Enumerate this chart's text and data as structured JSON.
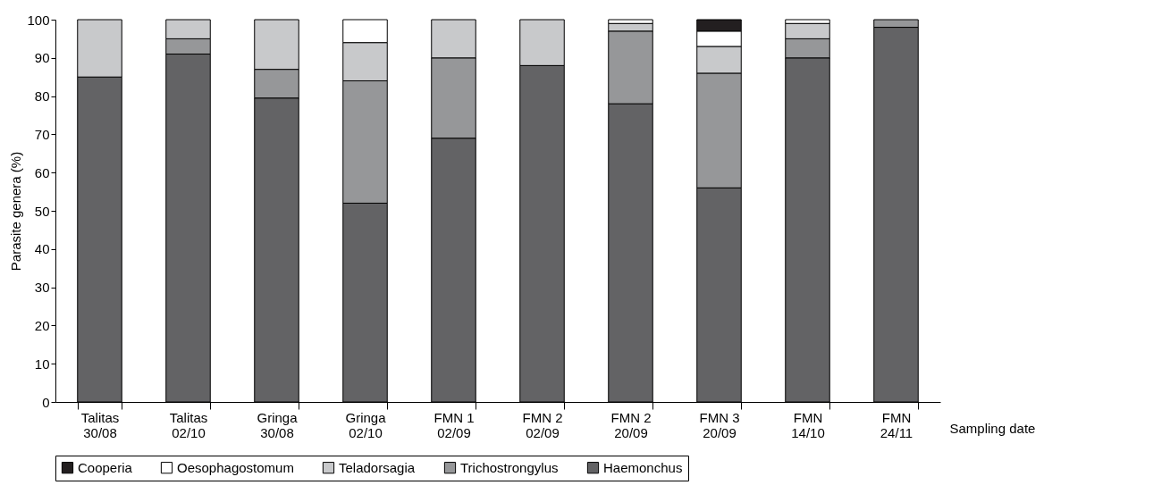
{
  "chart_data": {
    "type": "bar",
    "stacked": true,
    "ylabel": "Parasite genera (%)",
    "xlabel": "Sampling date",
    "categories": [
      "Talitas\n30/08",
      "Talitas\n02/10",
      "Gringa\n30/08",
      "Gringa\n02/10",
      "FMN 1\n02/09",
      "FMN 2\n02/09",
      "FMN 2\n20/09",
      "FMN 3\n20/09",
      "FMN\n14/10",
      "FMN\n24/11"
    ],
    "series": [
      {
        "name": "Haemonchus",
        "color": "#636365",
        "values": [
          85,
          91,
          79.5,
          52,
          69,
          88,
          78,
          56,
          90,
          98
        ]
      },
      {
        "name": "Trichostrongylus",
        "color": "#969799",
        "values": [
          null,
          4,
          7.5,
          32,
          21,
          null,
          19,
          30,
          5,
          2
        ]
      },
      {
        "name": "Teladorsagia",
        "color": "#c8c9cb",
        "values": [
          15,
          5,
          13,
          10,
          10,
          12,
          2,
          7,
          4,
          null
        ]
      },
      {
        "name": "Oesophagostomum",
        "color": "#ffffff",
        "values": [
          null,
          null,
          null,
          6,
          null,
          null,
          1,
          4,
          1,
          null
        ]
      },
      {
        "name": "Cooperia",
        "color": "#231f20",
        "values": [
          null,
          null,
          null,
          null,
          null,
          null,
          null,
          3,
          null,
          null
        ]
      }
    ],
    "ylim": [
      0,
      100
    ],
    "yticks": [
      0,
      10,
      20,
      30,
      40,
      50,
      60,
      70,
      80,
      90,
      100
    ],
    "grid": false,
    "legend": "bottom"
  }
}
